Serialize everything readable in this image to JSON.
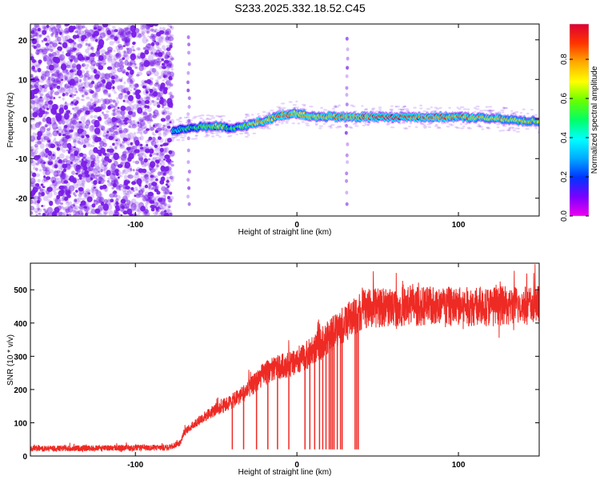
{
  "title": "S233.2025.332.18.52.C45",
  "colors": {
    "snr_line": "#ee2a24",
    "dot_color": "#7a1ee8",
    "axis": "#000000"
  },
  "colormap": [
    "#ee00ee",
    "#7a00ff",
    "#0033ff",
    "#00aaff",
    "#00ffff",
    "#00ff66",
    "#66ff00",
    "#ffff00",
    "#ffaa00",
    "#ff3300",
    "#dd0033"
  ],
  "chart_data": [
    {
      "type": "heatmap",
      "title": "",
      "xlabel": "Height of straight line (km)",
      "ylabel": "Frequency (Hz)",
      "xlim": [
        -165,
        150
      ],
      "ylim": [
        -24.5,
        24
      ],
      "xticks": [
        -100,
        0,
        100
      ],
      "yticks": [
        -20,
        -10,
        0,
        10,
        20
      ],
      "colorbar": {
        "label": "Normalized spectral amplitude",
        "range": [
          0,
          0.98
        ],
        "ticks": [
          0.0,
          0.2,
          0.4,
          0.6,
          0.8
        ]
      },
      "noise_region_x": [
        -165,
        -77
      ],
      "ridge": {
        "x": [
          -77,
          -70,
          -60,
          -50,
          -40,
          -30,
          -20,
          -10,
          0,
          10,
          20,
          30,
          40,
          60,
          80,
          100,
          120,
          140,
          150
        ],
        "freq": [
          -3,
          -2.5,
          -2,
          -1.8,
          -2.5,
          -1.5,
          -0.5,
          1,
          1.5,
          0.5,
          0.6,
          0.5,
          0.5,
          0.5,
          0.5,
          0.5,
          0.2,
          -0.5,
          -0.5
        ],
        "amplitude": [
          0.45,
          0.5,
          0.6,
          0.65,
          0.55,
          0.7,
          0.75,
          0.85,
          0.8,
          0.75,
          0.8,
          0.85,
          0.9,
          0.95,
          0.9,
          0.8,
          0.75,
          0.7,
          0.65
        ]
      },
      "vertical_streaks_x": [
        -67,
        31
      ]
    },
    {
      "type": "line",
      "title": "",
      "xlabel": "Height of straight line (km)",
      "ylabel": "SNR (10 * v/v)",
      "xlim": [
        -165,
        150
      ],
      "ylim": [
        0,
        580
      ],
      "xticks": [
        -100,
        0,
        100
      ],
      "yticks": [
        0,
        100,
        200,
        300,
        400,
        500
      ],
      "trend": {
        "x": [
          -165,
          -80,
          -72,
          -70,
          -60,
          -50,
          -40,
          -30,
          -20,
          -10,
          0,
          10,
          20,
          30,
          40,
          60,
          80,
          100,
          120,
          150
        ],
        "y": [
          22,
          25,
          40,
          70,
          110,
          140,
          165,
          200,
          250,
          270,
          280,
          320,
          360,
          400,
          440,
          450,
          450,
          450,
          450,
          455
        ]
      },
      "dropouts_x": [
        -40,
        -33,
        -25,
        -18,
        -12,
        -5,
        5,
        8,
        11,
        14,
        16,
        18,
        20,
        21,
        22,
        23,
        25,
        27,
        28,
        36,
        37,
        38
      ]
    }
  ]
}
